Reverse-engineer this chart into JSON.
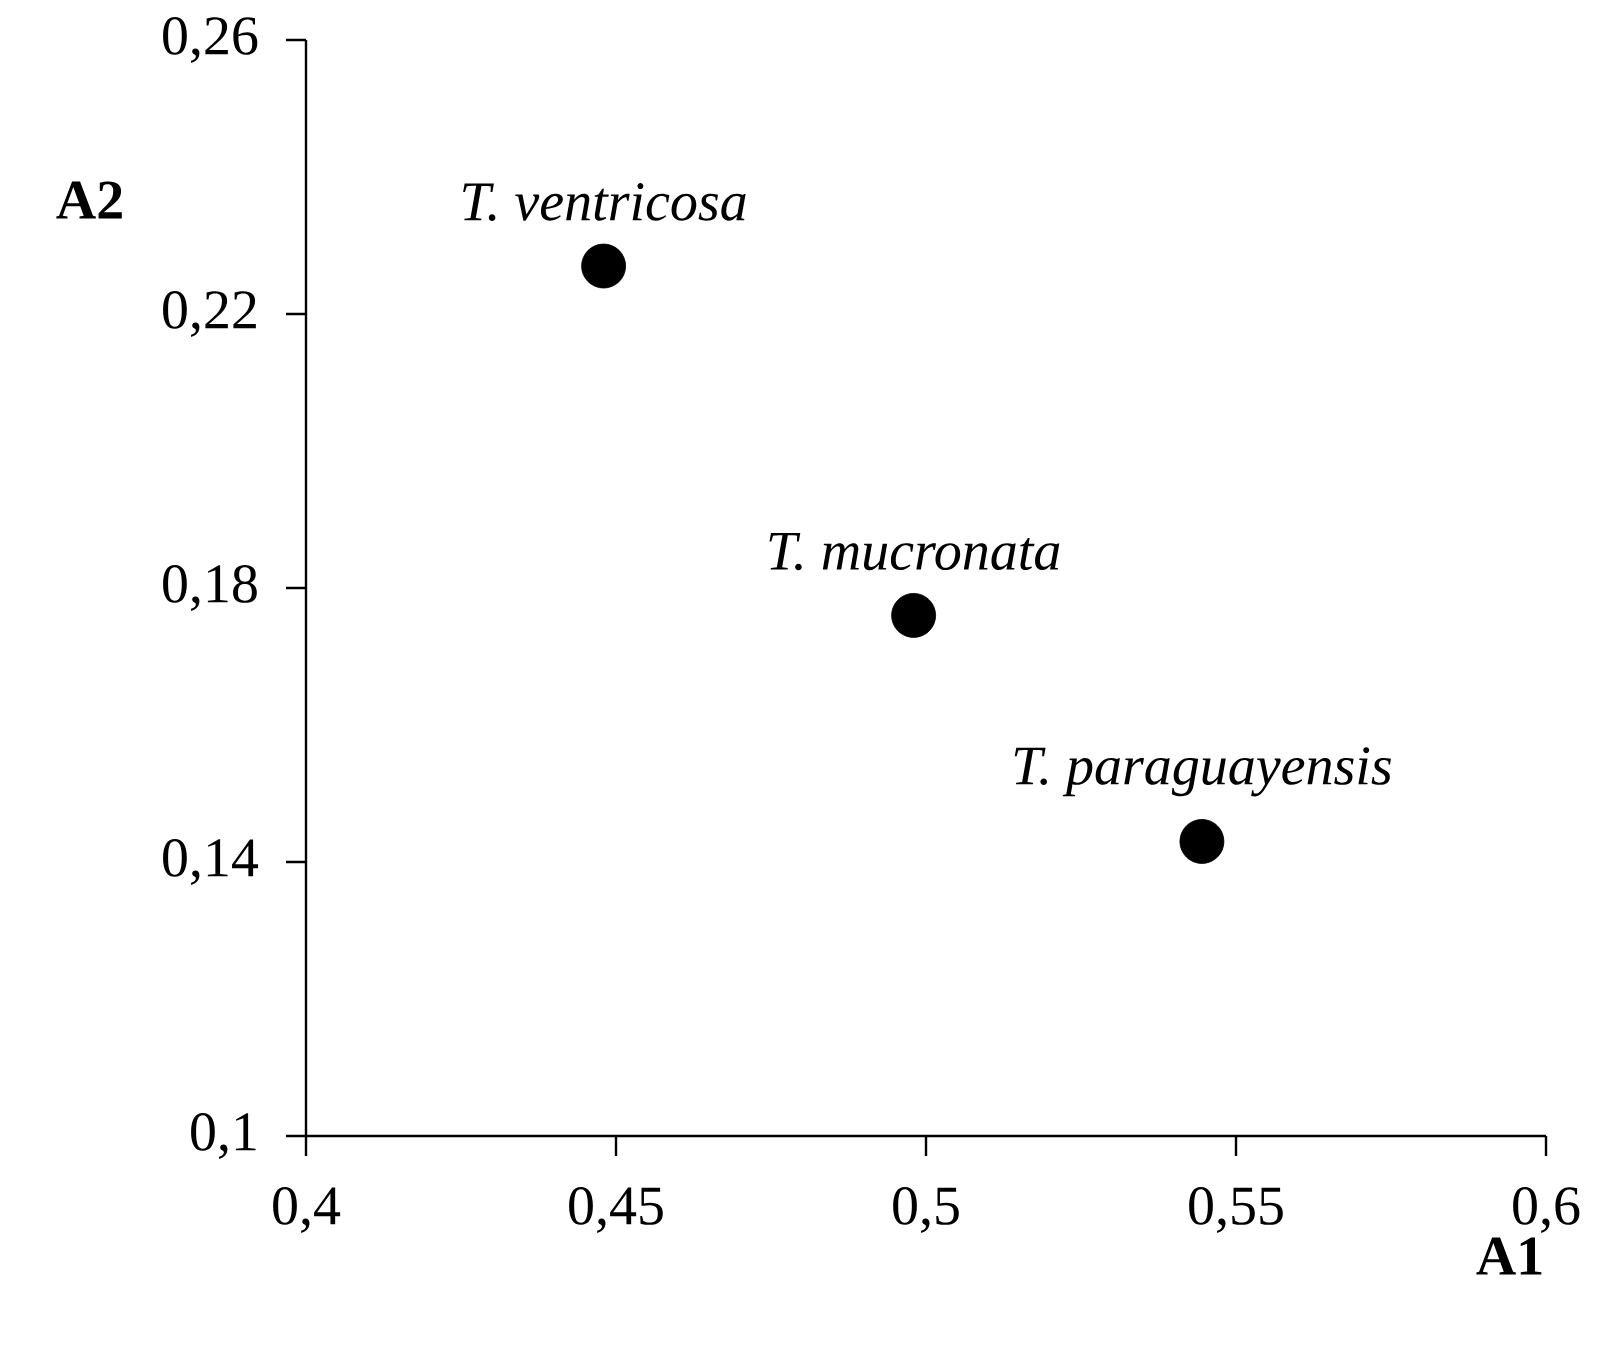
{
  "chart_data": {
    "type": "scatter",
    "xlabel": "A1",
    "ylabel": "A2",
    "series": [
      {
        "color": "#000000",
        "x": [
          0.448,
          0.498,
          0.5445
        ],
        "values": [
          0.227,
          0.176,
          0.143
        ]
      }
    ],
    "marker": "circle",
    "xlim": [
      0.4,
      0.6
    ],
    "ylim": [
      0.1,
      0.26
    ],
    "xticks": [
      {
        "value": 0.4,
        "label": "0,4"
      },
      {
        "value": 0.45,
        "label": "0,45"
      },
      {
        "value": 0.5,
        "label": "0,5"
      },
      {
        "value": 0.55,
        "label": "0,55"
      },
      {
        "value": 0.6,
        "label": "0,6"
      }
    ],
    "yticks": [
      {
        "value": 0.1,
        "label": "0,1"
      },
      {
        "value": 0.14,
        "label": "0,14"
      },
      {
        "value": 0.18,
        "label": "0,18"
      },
      {
        "value": 0.22,
        "label": "0,22"
      },
      {
        "value": 0.26,
        "label": "0,26"
      }
    ],
    "annotations": [
      {
        "text": "T. ventricosa",
        "x": 0.448,
        "y": 0.227
      },
      {
        "text": "T. mucronata",
        "x": 0.498,
        "y": 0.176
      },
      {
        "text": "T. paraguayensis",
        "x": 0.5445,
        "y": 0.143
      }
    ]
  }
}
